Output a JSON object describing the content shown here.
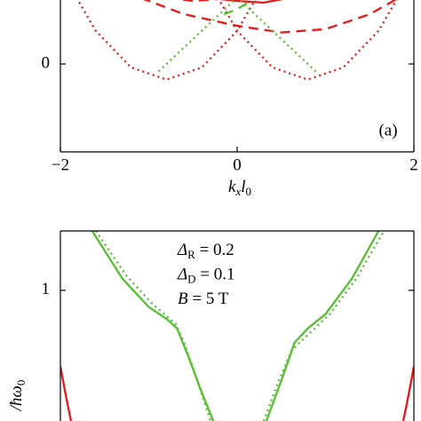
{
  "chart_data": [
    {
      "type": "line",
      "xlim": [
        -2,
        2
      ],
      "xticks": [
        {
          "value": -2,
          "label": "−2"
        },
        0,
        2
      ],
      "ylim": [
        -0.53,
        0.6
      ],
      "yticks": [
        0
      ],
      "xlabel": {
        "main": "k",
        "sub": "x",
        "main2": "l",
        "sub2": "0"
      },
      "annotation": "(a)",
      "series": [
        {
          "color": "#e02020",
          "style": "dotted",
          "x": [
            -2,
            -1.6,
            -1.2,
            -0.8,
            -0.4,
            0,
            0.4
          ],
          "values": [
            0.567,
            0.2,
            -0.021,
            -0.094,
            -0.021,
            0.2,
            0.567
          ]
        },
        {
          "color": "#e02020",
          "style": "dotted",
          "x": [
            -0.4,
            0,
            0.4,
            0.8,
            1.2,
            1.6,
            2
          ],
          "values": [
            0.567,
            0.2,
            -0.021,
            -0.094,
            -0.021,
            0.2,
            0.567
          ]
        },
        {
          "color": "#e02020",
          "style": "dashed",
          "x": [
            -1.7,
            -1.2,
            -0.6,
            0,
            0.5,
            1.0,
            1.5,
            2
          ],
          "values": [
            0.6,
            0.42,
            0.3,
            0.23,
            0.19,
            0.21,
            0.3,
            0.45
          ]
        },
        {
          "color": "#e02020",
          "style": "dashed",
          "x": [
            -2,
            -1.5,
            -1.0,
            -0.5,
            0,
            0.4
          ],
          "values": [
            0.6,
            0.5,
            0.42,
            0.38,
            0.4,
            0.52
          ]
        },
        {
          "color": "#e02020",
          "style": "solid",
          "x": [
            -1.6,
            -1,
            -0.5,
            0,
            0.3,
            0.8,
            1.3,
            1.4
          ],
          "values": [
            0.6,
            0.46,
            0.41,
            0.38,
            0.37,
            0.42,
            0.56,
            0.6
          ]
        },
        {
          "color": "#5cbf3a",
          "style": "dotted",
          "x": [
            -0.4,
            0.9
          ],
          "values": [
            0.6,
            -0.05
          ]
        },
        {
          "color": "#5cbf3a",
          "style": "dotted",
          "x": [
            0.4,
            -0.9
          ],
          "values": [
            0.6,
            -0.05
          ]
        },
        {
          "color": "#5cbf3a",
          "style": "solid",
          "x": [
            -0.35,
            -0.15,
            0,
            0.15,
            0.35
          ],
          "values": [
            0.6,
            0.52,
            0.47,
            0.52,
            0.6
          ]
        },
        {
          "color": "#5cbf3a",
          "style": "dashed",
          "x": [
            -0.15,
            0,
            0.15,
            0.3
          ],
          "values": [
            0.3,
            0.33,
            0.38,
            0.46
          ]
        }
      ]
    },
    {
      "type": "line",
      "xlim": [
        -2,
        2
      ],
      "ylim": [
        0.45,
        1.25
      ],
      "yticks": [
        1
      ],
      "ylabel": {
        "main": "/ħω",
        "sub": "0"
      },
      "annotations": [
        {
          "symbol": "Δ",
          "sub": "R",
          "text": " = 0.2"
        },
        {
          "symbol": "Δ",
          "sub": "D",
          "text": " = 0.1"
        },
        {
          "symbol": "B",
          "sub": "",
          "text": " = 5 T"
        }
      ],
      "series": [
        {
          "color": "#5cbf3a",
          "style": "solid",
          "x": [
            -1.64,
            -1.3,
            -1.0,
            -0.8,
            -0.68,
            -0.55,
            -0.4,
            -0.27
          ],
          "values": [
            1.25,
            1.05,
            0.93,
            0.88,
            0.84,
            0.72,
            0.57,
            0.45
          ]
        },
        {
          "color": "#5cbf3a",
          "style": "solid",
          "x": [
            0.33,
            0.5,
            0.65,
            0.8,
            1.0,
            1.3,
            1.6
          ],
          "values": [
            0.45,
            0.62,
            0.78,
            0.84,
            0.9,
            1.05,
            1.25
          ]
        },
        {
          "color": "#5cbf3a",
          "style": "dotted",
          "x": [
            -1.6,
            -1.25,
            -0.95,
            -0.7,
            -0.6,
            -0.45,
            -0.3
          ],
          "values": [
            1.25,
            1.06,
            0.94,
            0.86,
            0.78,
            0.62,
            0.45
          ]
        },
        {
          "color": "#5cbf3a",
          "style": "dotted",
          "x": [
            0.3,
            0.45,
            0.62,
            0.85,
            1.05,
            1.35,
            1.66
          ],
          "values": [
            0.45,
            0.6,
            0.75,
            0.83,
            0.9,
            1.05,
            1.25
          ]
        },
        {
          "color": "#e02020",
          "style": "solid",
          "x": [
            -2,
            -1.94,
            -1.88
          ],
          "values": [
            0.68,
            0.56,
            0.45
          ]
        },
        {
          "color": "#e02020",
          "style": "solid",
          "x": [
            1.88,
            1.94,
            2
          ],
          "values": [
            0.45,
            0.56,
            0.68
          ]
        }
      ]
    }
  ]
}
